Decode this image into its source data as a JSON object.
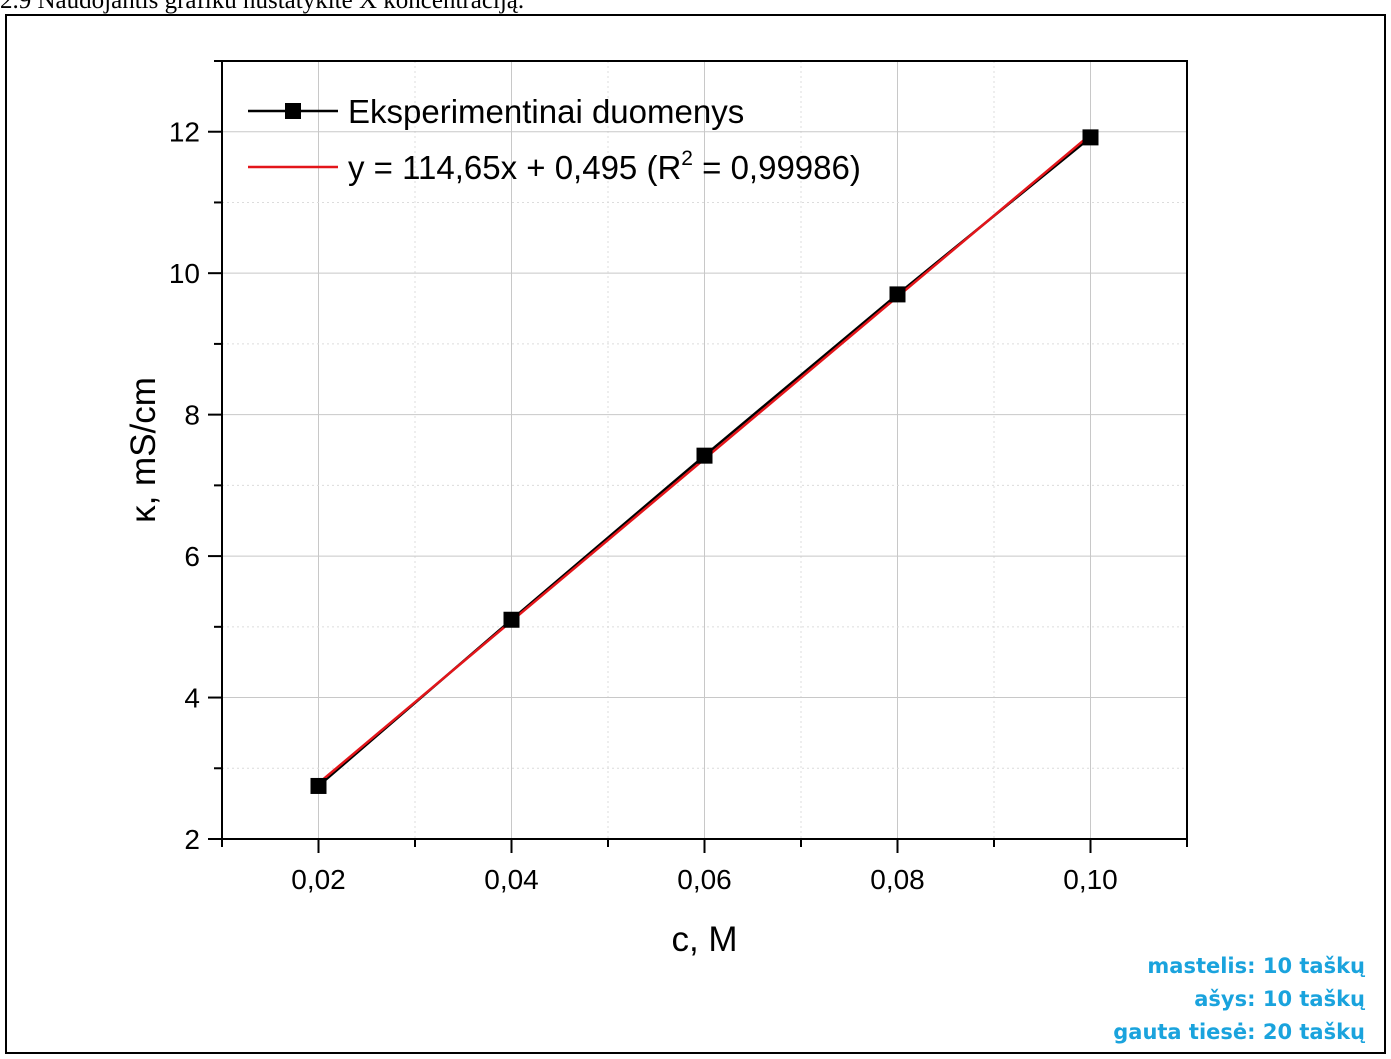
{
  "heading": "2.9 Naudojantis grafiku nustatykite X koncentraciją.",
  "chart_data": {
    "type": "scatter",
    "title": "",
    "xlabel": "c, M",
    "ylabel": "κ, mS/cm",
    "xlim": [
      0.01,
      0.11
    ],
    "ylim": [
      2,
      13
    ],
    "xticks": [
      0.02,
      0.04,
      0.06,
      0.08,
      0.1
    ],
    "xtick_labels": [
      "0,02",
      "0,04",
      "0,06",
      "0,08",
      "0,10"
    ],
    "yticks": [
      2,
      4,
      6,
      8,
      10,
      12
    ],
    "ytick_labels": [
      "2",
      "4",
      "6",
      "8",
      "10",
      "12"
    ],
    "grid": true,
    "legend_position": "top-left",
    "series": [
      {
        "name": "Eksperimentinai duomenys",
        "type": "line+markers",
        "color": "#000000",
        "x": [
          0.02,
          0.04,
          0.06,
          0.08,
          0.1
        ],
        "y": [
          2.75,
          5.1,
          7.42,
          9.7,
          11.92
        ]
      },
      {
        "name": "y = 114,65x + 0,495 (R² = 0,99986)",
        "legend_parts": {
          "pre": "y = 114,65x + 0,495 (R",
          "sup": "2",
          "post": " = 0,99986)"
        },
        "type": "line",
        "color": "#e3151a",
        "x": [
          0.02,
          0.1
        ],
        "y": [
          2.788,
          11.96
        ]
      }
    ]
  },
  "scores": [
    "mastelis:  10 taškų",
    "ašys:  10 taškų",
    "gauta tiesė:  20 taškų"
  ]
}
